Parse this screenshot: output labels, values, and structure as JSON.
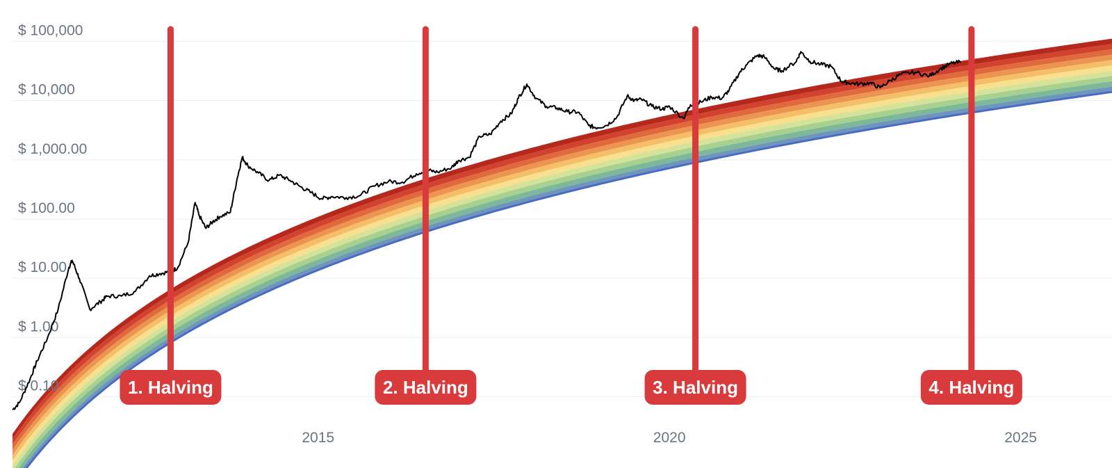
{
  "chart_data": {
    "type": "line",
    "title": "",
    "xlabel": "",
    "ylabel": "",
    "y_scale": "log",
    "ylim": [
      0.045,
      500000
    ],
    "xlim": [
      2010.65,
      2026.3
    ],
    "grid": true,
    "y_ticks": [
      {
        "value": 100000,
        "label": "$ 100,000"
      },
      {
        "value": 10000,
        "label": "$ 10,000"
      },
      {
        "value": 1000,
        "label": "$ 1,000.00"
      },
      {
        "value": 100,
        "label": "$ 100.00"
      },
      {
        "value": 10,
        "label": "$ 10.00"
      },
      {
        "value": 1,
        "label": "$ 1.00"
      },
      {
        "value": 0.1,
        "label": "$ 0.10"
      }
    ],
    "x_ticks": [
      {
        "value": 2015,
        "label": "2015"
      },
      {
        "value": 2020,
        "label": "2020"
      },
      {
        "value": 2025,
        "label": "2025"
      }
    ],
    "rainbow_bands": {
      "colors": [
        "#b7281c",
        "#d2432f",
        "#e06a3e",
        "#ec9550",
        "#f5be68",
        "#f8e08f",
        "#d5e39a",
        "#a8d190",
        "#7db89a",
        "#6f95bd"
      ],
      "bottom_line_color": "#4a6bc4"
    },
    "series": [
      {
        "color": "#000000",
        "x": [
          2010.65,
          2010.75,
          2010.9,
          2011.0,
          2011.15,
          2011.3,
          2011.45,
          2011.5,
          2011.6,
          2011.75,
          2011.9,
          2012.0,
          2012.2,
          2012.4,
          2012.6,
          2012.75,
          2012.9,
          2013.0,
          2013.15,
          2013.25,
          2013.3,
          2013.4,
          2013.5,
          2013.6,
          2013.75,
          2013.85,
          2013.92,
          2014.0,
          2014.15,
          2014.3,
          2014.45,
          2014.6,
          2014.75,
          2014.9,
          2015.05,
          2015.2,
          2015.4,
          2015.6,
          2015.8,
          2016.0,
          2016.2,
          2016.4,
          2016.55,
          2016.7,
          2016.9,
          2017.0,
          2017.15,
          2017.3,
          2017.45,
          2017.6,
          2017.75,
          2017.85,
          2017.97,
          2018.1,
          2018.25,
          2018.4,
          2018.55,
          2018.7,
          2018.85,
          2018.95,
          2019.1,
          2019.25,
          2019.4,
          2019.5,
          2019.6,
          2019.75,
          2019.9,
          2020.0,
          2020.2,
          2020.3,
          2020.45,
          2020.6,
          2020.75,
          2020.85,
          2021.0,
          2021.1,
          2021.25,
          2021.35,
          2021.5,
          2021.6,
          2021.8,
          2021.87,
          2022.0,
          2022.15,
          2022.3,
          2022.45,
          2022.55,
          2022.7,
          2022.85,
          2023.0,
          2023.15,
          2023.3,
          2023.5,
          2023.7,
          2023.85,
          2024.0,
          2024.15
        ],
        "y": [
          0.06,
          0.08,
          0.2,
          0.4,
          1.0,
          3.0,
          15.0,
          20.0,
          10.0,
          3.0,
          4.0,
          5.0,
          5.0,
          6.0,
          11.0,
          12.0,
          13.0,
          15.0,
          40.0,
          190.0,
          120.0,
          70.0,
          90.0,
          110.0,
          130.0,
          500.0,
          1100.0,
          800.0,
          600.0,
          450.0,
          550.0,
          450.0,
          350.0,
          280.0,
          220.0,
          240.0,
          230.0,
          250.0,
          360.0,
          430.0,
          420.0,
          580.0,
          670.0,
          620.0,
          740.0,
          980.0,
          1100.0,
          2500.0,
          2700.0,
          4500.0,
          6000.0,
          11000.0,
          19000.0,
          11000.0,
          8000.0,
          7500.0,
          6500.0,
          6400.0,
          3800.0,
          3500.0,
          3800.0,
          5200.0,
          12000.0,
          10000.0,
          10500.0,
          8000.0,
          7200.0,
          8000.0,
          5000.0,
          8500.0,
          9500.0,
          11500.0,
          11000.0,
          15000.0,
          30000.0,
          40000.0,
          58000.0,
          55000.0,
          34000.0,
          32000.0,
          45000.0,
          67000.0,
          46000.0,
          41000.0,
          38000.0,
          21000.0,
          20000.0,
          19000.0,
          20000.0,
          16500.0,
          22000.0,
          28000.0,
          30000.0,
          26000.0,
          34000.0,
          42000.0,
          45000.0
        ]
      }
    ],
    "annotations": [
      {
        "x": 2012.9,
        "label": "1. Halving",
        "color": "#d93a3b"
      },
      {
        "x": 2016.53,
        "label": "2. Halving",
        "color": "#d93a3b"
      },
      {
        "x": 2020.37,
        "label": "3. Halving",
        "color": "#d93a3b"
      },
      {
        "x": 2024.3,
        "label": "4. Halving",
        "color": "#d93a3b"
      }
    ]
  }
}
